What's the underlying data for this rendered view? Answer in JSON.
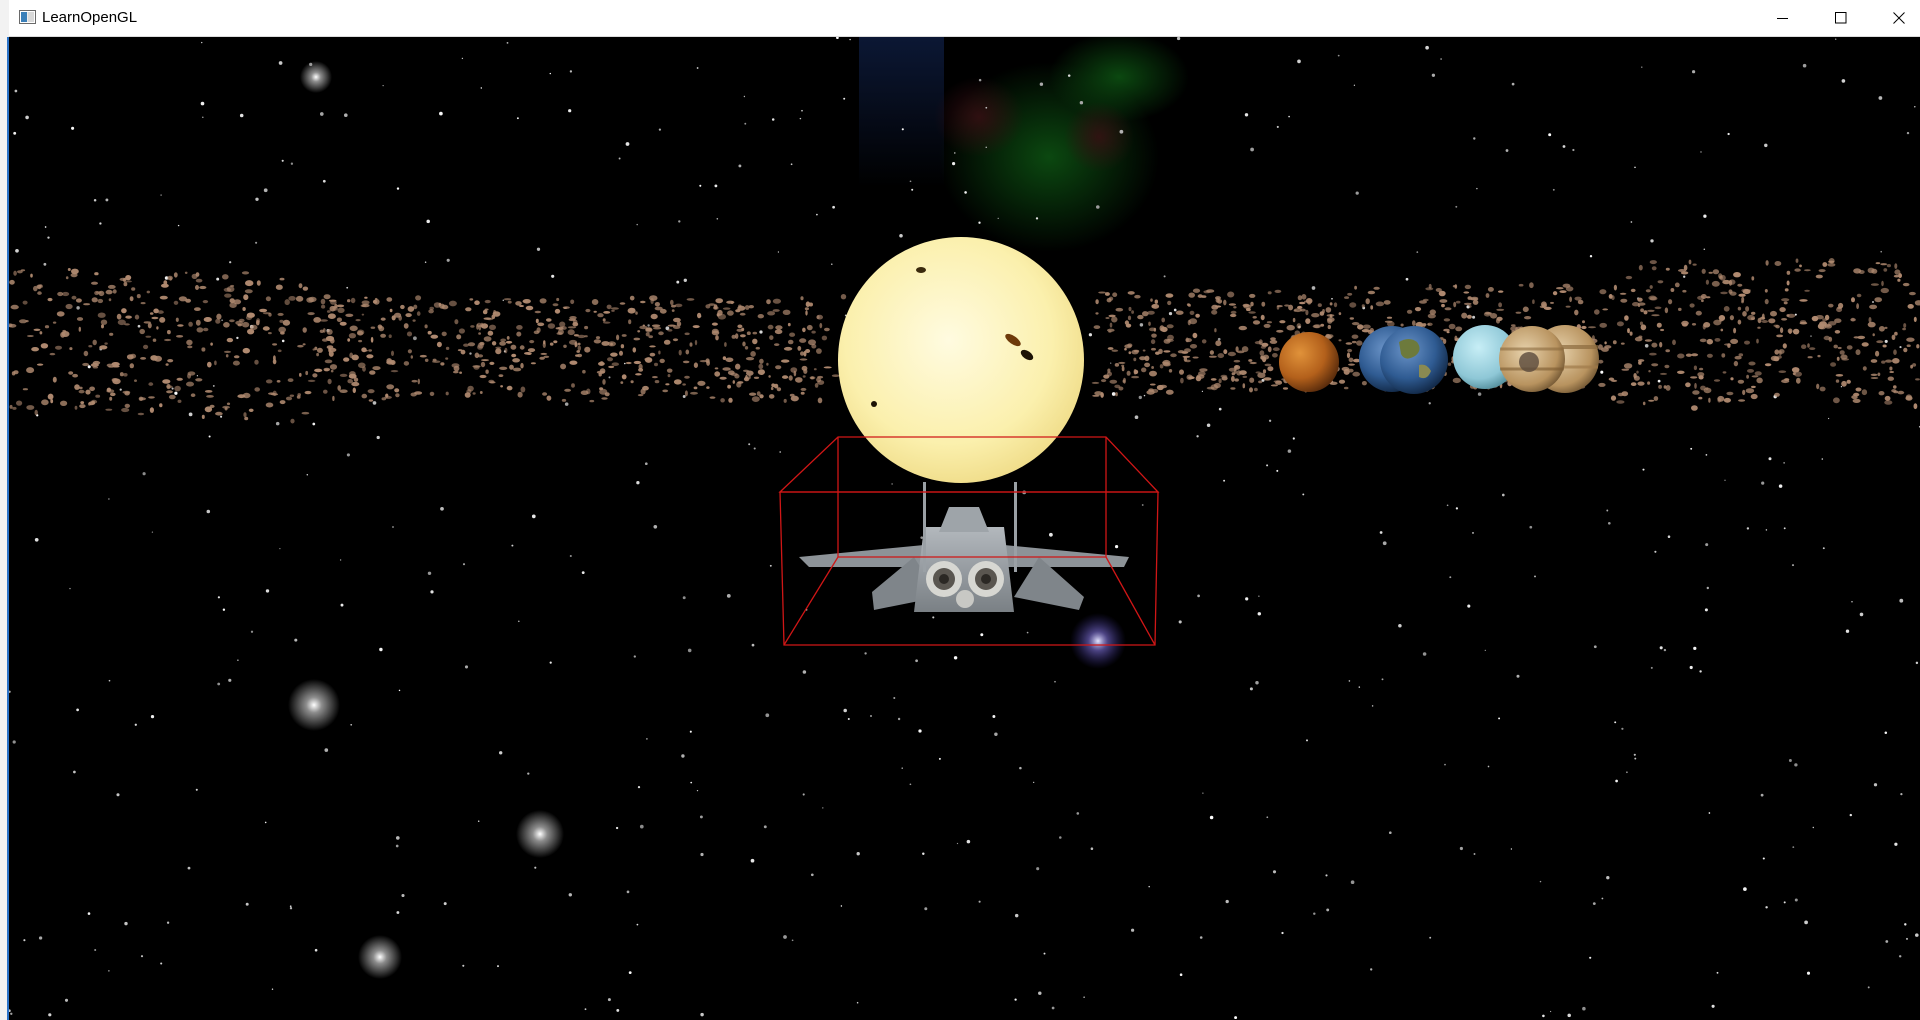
{
  "window": {
    "title": "LearnOpenGL"
  },
  "controls": {
    "minimize_icon": "minimize-icon",
    "maximize_icon": "maximize-icon",
    "close_icon": "close-icon"
  },
  "scene": {
    "objects": [
      "skybox-starfield",
      "nebula",
      "asteroid-belt",
      "sun",
      "planet-mars",
      "planet-earth",
      "planet-uranus",
      "planet-jupiter",
      "fighter-jet",
      "bounding-box"
    ],
    "colors": {
      "space": "#000000",
      "sun": "#fbf3b6",
      "asteroid": "#b08a70",
      "bounding_box": "#d01616",
      "jet": "#8d9398",
      "mars": "#b9671f",
      "earth": "#3c6fa8",
      "uranus": "#8ec7d6",
      "jupiter": "#c9a97c",
      "accent_bar": "#2b73c8"
    }
  }
}
